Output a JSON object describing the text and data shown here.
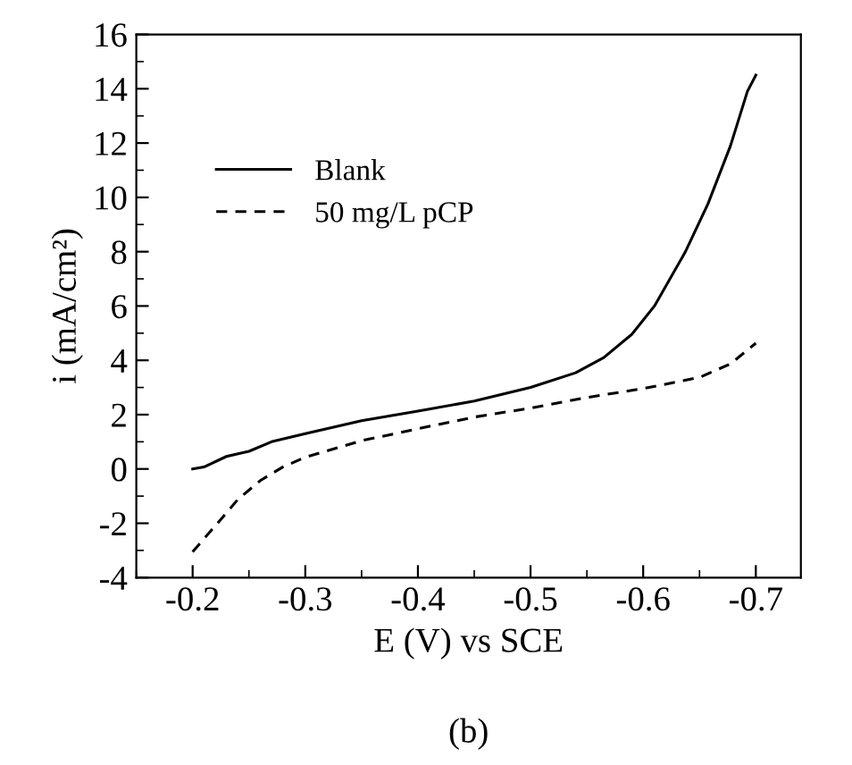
{
  "chart_data": {
    "type": "line",
    "xlabel": "E (V) vs SCE",
    "ylabel": "i (mA/cm²)",
    "annotations": [
      "(b)"
    ],
    "xlim": [
      -0.15,
      -0.74
    ],
    "xticks": [
      -0.2,
      -0.3,
      -0.4,
      -0.5,
      -0.6,
      -0.7
    ],
    "ylim": [
      -4,
      16
    ],
    "yticks": [
      -4,
      -2,
      0,
      2,
      4,
      6,
      8,
      10,
      12,
      14,
      16
    ],
    "grid": false,
    "legend": "top left",
    "marker": "none",
    "series": [
      {
        "name": "Blank",
        "color": "#000000",
        "line_style": "solid",
        "x": [
          -0.2,
          -0.21,
          -0.23,
          -0.25,
          -0.27,
          -0.3,
          -0.35,
          -0.4,
          -0.45,
          -0.5,
          -0.54,
          -0.565,
          -0.59,
          -0.61,
          -0.6375,
          -0.6575,
          -0.6775,
          -0.6925,
          -0.7
        ],
        "values": [
          0,
          0.07,
          0.46,
          0.65,
          1.0,
          1.3,
          1.78,
          2.13,
          2.5,
          3.0,
          3.54,
          4.1,
          4.96,
          6.0,
          8.0,
          9.76,
          11.9,
          13.9,
          14.5
        ]
      },
      {
        "name": "50 mg/L pCP",
        "color": "#000000",
        "line_style": "dashed",
        "x": [
          -0.2,
          -0.22,
          -0.24,
          -0.26,
          -0.28,
          -0.3,
          -0.35,
          -0.4,
          -0.45,
          -0.5,
          -0.55,
          -0.6,
          -0.65,
          -0.6775,
          -0.7
        ],
        "values": [
          -3.05,
          -2.1,
          -1.13,
          -0.43,
          0.07,
          0.43,
          1.04,
          1.48,
          1.91,
          2.24,
          2.63,
          2.96,
          3.37,
          3.87,
          4.63
        ]
      }
    ]
  }
}
